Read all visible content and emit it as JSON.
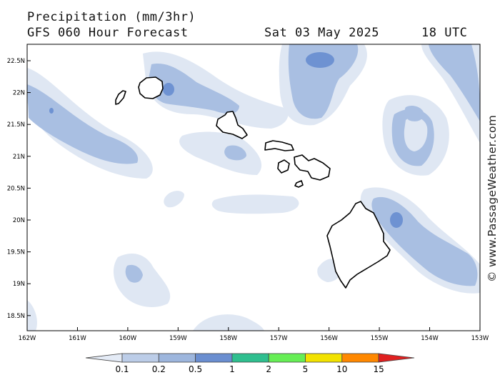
{
  "header": {
    "title": "Precipitation (mm/3hr)",
    "subtitle": "GFS 060 Hour Forecast",
    "date": "Sat 03 May 2025",
    "time": "18 UTC"
  },
  "credit": "© www.PassageWeather.com",
  "axes": {
    "lat_labels": [
      "22.5N",
      "22N",
      "21.5N",
      "21N",
      "20.5N",
      "20N",
      "19.5N",
      "19N",
      "18.5N"
    ],
    "lon_labels": [
      "162W",
      "161W",
      "160W",
      "159W",
      "158W",
      "157W",
      "156W",
      "155W",
      "154W",
      "153W"
    ]
  },
  "legend": {
    "labels": [
      "0.1",
      "0.2",
      "0.5",
      "1",
      "2",
      "5",
      "10",
      "15"
    ],
    "colors": [
      "#e4ebf6",
      "#bccde8",
      "#9db6dd",
      "#6a8ed0",
      "#2fbf8f",
      "#66ee55",
      "#f2e200",
      "#ff8800",
      "#e02020"
    ]
  },
  "palette": {
    "light": "#dfe7f3",
    "medium": "#a9bfe2",
    "dark": "#6e92d2"
  }
}
